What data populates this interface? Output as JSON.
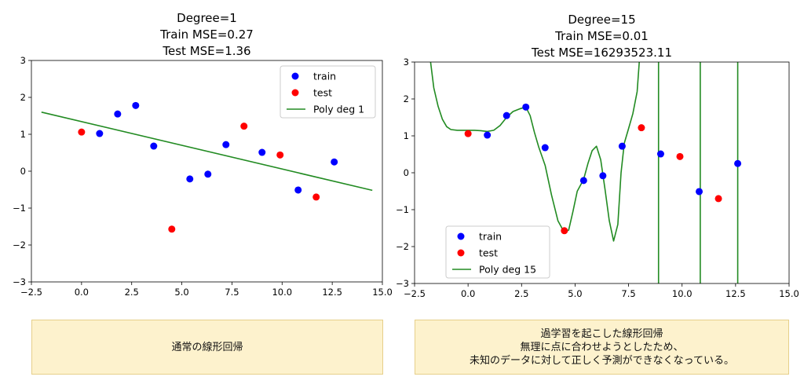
{
  "chart_data": [
    {
      "type": "scatter",
      "title_lines": [
        "Degree=1",
        "Train MSE=0.27",
        "Test MSE=1.36"
      ],
      "xlim": [
        -2.5,
        15.0
      ],
      "ylim": [
        -3,
        3
      ],
      "xticks": [
        -2.5,
        0.0,
        2.5,
        5.0,
        7.5,
        10.0,
        12.5,
        15.0
      ],
      "xtick_labels": [
        "−2.5",
        "0.0",
        "2.5",
        "5.0",
        "7.5",
        "10.0",
        "12.5",
        "15.0"
      ],
      "yticks": [
        -3,
        -2,
        -1,
        0,
        1,
        2,
        3
      ],
      "ytick_labels": [
        "−3",
        "−2",
        "−1",
        "0",
        "1",
        "2",
        "3"
      ],
      "legend_position": "top-right",
      "series": [
        {
          "name": "train",
          "kind": "scatter",
          "color": "#0000ff",
          "x": [
            0.9,
            1.8,
            2.7,
            3.6,
            5.4,
            6.3,
            7.2,
            9.0,
            10.8,
            12.6
          ],
          "y": [
            1.02,
            1.55,
            1.78,
            0.68,
            -0.21,
            -0.08,
            0.72,
            0.51,
            -0.51,
            0.25
          ]
        },
        {
          "name": "test",
          "kind": "scatter",
          "color": "#ff0000",
          "x": [
            0.0,
            4.5,
            8.1,
            9.9,
            11.7
          ],
          "y": [
            1.06,
            -1.57,
            1.22,
            0.44,
            -0.7
          ]
        },
        {
          "name": "Poly deg 1",
          "kind": "line",
          "color": "#228b22",
          "x": [
            -2.0,
            14.5
          ],
          "y": [
            1.6,
            -0.52
          ]
        }
      ]
    },
    {
      "type": "scatter",
      "title_lines": [
        "Degree=15",
        "Train MSE=0.01",
        "Test MSE=16293523.11"
      ],
      "xlim": [
        -2.5,
        15.0
      ],
      "ylim": [
        -3,
        3
      ],
      "xticks": [
        -2.5,
        0.0,
        2.5,
        5.0,
        7.5,
        10.0,
        12.5,
        15.0
      ],
      "xtick_labels": [
        "−2.5",
        "0.0",
        "2.5",
        "5.0",
        "7.5",
        "10.0",
        "12.5",
        "15.0"
      ],
      "yticks": [
        -3,
        -2,
        -1,
        0,
        1,
        2,
        3
      ],
      "ytick_labels": [
        "−3",
        "−2",
        "−1",
        "0",
        "1",
        "2",
        "3"
      ],
      "legend_position": "bottom-left",
      "series": [
        {
          "name": "train",
          "kind": "scatter",
          "color": "#0000ff",
          "x": [
            0.9,
            1.8,
            2.7,
            3.6,
            5.4,
            6.3,
            7.2,
            9.0,
            10.8,
            12.6
          ],
          "y": [
            1.02,
            1.55,
            1.78,
            0.68,
            -0.21,
            -0.08,
            0.72,
            0.51,
            -0.51,
            0.25
          ]
        },
        {
          "name": "test",
          "kind": "scatter",
          "color": "#ff0000",
          "x": [
            0.0,
            4.5,
            8.1,
            9.9,
            11.7
          ],
          "y": [
            1.06,
            -1.57,
            1.22,
            0.44,
            -0.7
          ]
        },
        {
          "name": "Poly deg 15",
          "kind": "line",
          "color": "#228b22",
          "x": [
            -1.75,
            -1.6,
            -1.4,
            -1.2,
            -1.0,
            -0.8,
            -0.5,
            -0.2,
            0.0,
            0.3,
            0.6,
            0.9,
            1.2,
            1.5,
            1.8,
            2.1,
            2.4,
            2.7,
            2.9,
            3.1,
            3.3,
            3.6,
            3.9,
            4.2,
            4.5,
            4.7,
            4.9,
            5.1,
            5.4,
            5.6,
            5.8,
            6.0,
            6.2,
            6.4,
            6.6,
            6.8,
            7.0,
            7.15,
            7.3,
            7.5,
            7.7,
            7.9,
            8.0
          ],
          "y": [
            3.0,
            2.3,
            1.8,
            1.45,
            1.25,
            1.17,
            1.15,
            1.15,
            1.15,
            1.15,
            1.14,
            1.12,
            1.15,
            1.28,
            1.5,
            1.66,
            1.73,
            1.78,
            1.55,
            1.1,
            0.7,
            0.2,
            -0.6,
            -1.3,
            -1.62,
            -1.55,
            -1.05,
            -0.5,
            -0.18,
            0.25,
            0.6,
            0.72,
            0.35,
            -0.45,
            -1.3,
            -1.85,
            -1.4,
            0.0,
            0.8,
            1.2,
            1.6,
            2.2,
            3.0
          ]
        },
        {
          "name": "",
          "kind": "vline",
          "color": "#228b22",
          "x": [
            8.9,
            10.85,
            12.6
          ]
        }
      ]
    }
  ],
  "captions": {
    "left": [
      "通常の線形回帰"
    ],
    "right": [
      "過学習を起こした線形回帰",
      "無理に点に合わせようとしたため、",
      "未知のデータに対して正しく予測ができなくなっている。"
    ]
  }
}
